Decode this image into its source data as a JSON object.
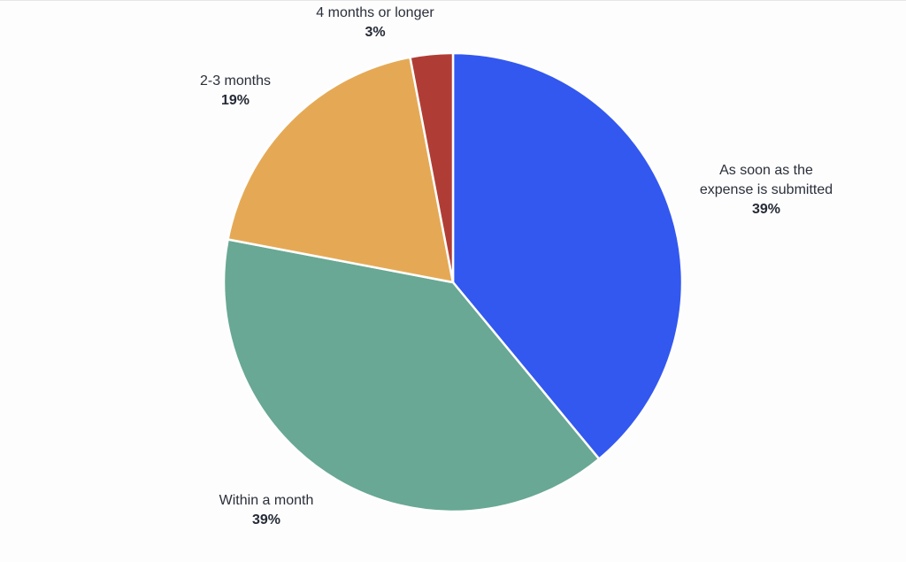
{
  "chart_data": {
    "type": "pie",
    "title": "",
    "start_angle_deg": 0,
    "direction": "clockwise",
    "slices": [
      {
        "label": "As soon as the expense is submitted",
        "label_lines": [
          "As soon as the",
          "expense is submitted"
        ],
        "value": 39,
        "display": "39%",
        "color": "#3358ef"
      },
      {
        "label": "Within a month",
        "label_lines": [
          "Within a month"
        ],
        "value": 39,
        "display": "39%",
        "color": "#68a894"
      },
      {
        "label": "2-3 months",
        "label_lines": [
          "2-3 months"
        ],
        "value": 19,
        "display": "19%",
        "color": "#e5a955"
      },
      {
        "label": "4 months or longer",
        "label_lines": [
          "4 months or longer"
        ],
        "value": 3,
        "display": "3%",
        "color": "#b03d35"
      }
    ],
    "legend": "none (direct labels)"
  },
  "labels": {
    "s0": {
      "line1": "As soon as the",
      "line2": "expense is submitted",
      "pct": "39%"
    },
    "s1": {
      "line1": "Within a month",
      "pct": "39%"
    },
    "s2": {
      "line1": "2-3 months",
      "pct": "19%"
    },
    "s3": {
      "line1": "4 months or longer",
      "pct": "3%"
    }
  }
}
